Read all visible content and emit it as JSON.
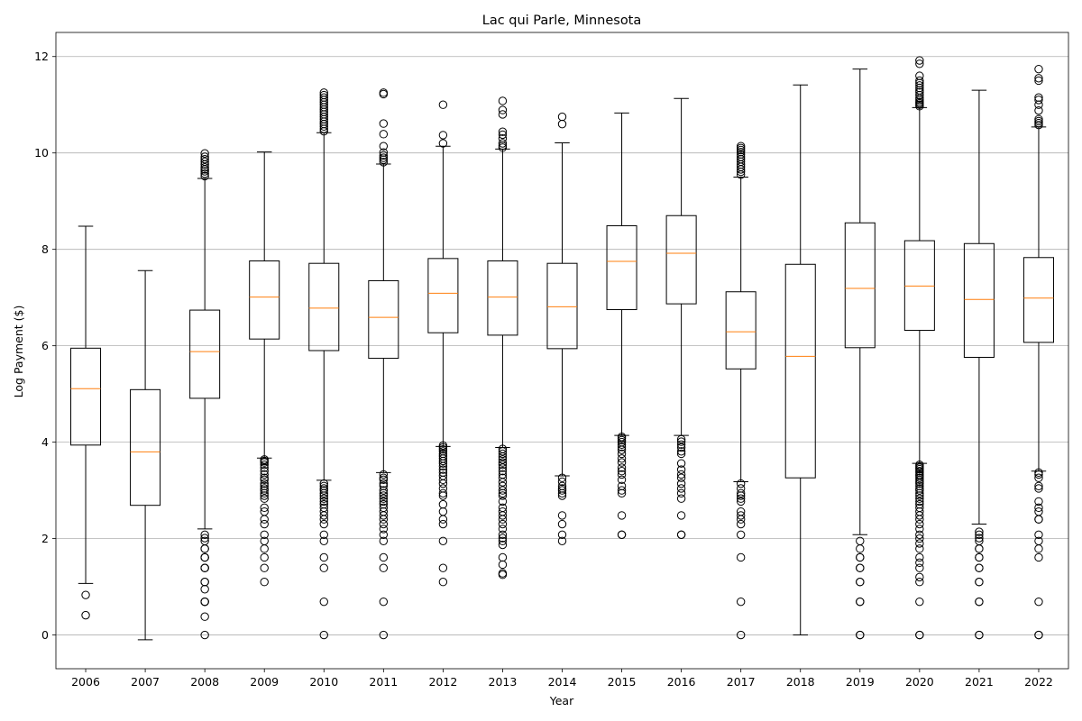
{
  "chart_data": {
    "type": "box",
    "title": "Lac qui Parle, Minnesota",
    "xlabel": "Year",
    "ylabel": "Log Payment ($)",
    "ylim": [
      -0.7,
      12.5
    ],
    "yticks": [
      0,
      2,
      4,
      6,
      8,
      10,
      12
    ],
    "grid": "horizontal",
    "colors": {
      "box": "#000000",
      "median": "#ff7f0e",
      "grid": "#b0b0b0",
      "flier": "#000000"
    },
    "categories": [
      "2006",
      "2007",
      "2008",
      "2009",
      "2010",
      "2011",
      "2012",
      "2013",
      "2014",
      "2015",
      "2016",
      "2017",
      "2018",
      "2019",
      "2020",
      "2021",
      "2022"
    ],
    "boxes": [
      {
        "year": "2006",
        "whislo": 1.07,
        "q1": 3.94,
        "med": 5.11,
        "q3": 5.95,
        "whishi": 8.48,
        "fliers": [
          0.83,
          0.41
        ]
      },
      {
        "year": "2007",
        "whislo": -0.1,
        "q1": 2.69,
        "med": 3.8,
        "q3": 5.09,
        "whishi": 7.56,
        "fliers": []
      },
      {
        "year": "2008",
        "whislo": 2.2,
        "q1": 4.91,
        "med": 5.88,
        "q3": 6.74,
        "whishi": 9.47,
        "fliers": [
          0,
          0.38,
          0.69,
          0.69,
          0.69,
          0.95,
          1.1,
          1.1,
          1.39,
          1.39,
          1.39,
          1.61,
          1.61,
          1.61,
          1.79,
          1.79,
          1.95,
          2.01,
          2.08,
          9.52,
          9.57,
          9.62,
          9.66,
          9.7,
          9.76,
          9.82,
          9.87,
          9.92,
          9.99
        ]
      },
      {
        "year": "2009",
        "whislo": 3.67,
        "q1": 6.14,
        "med": 7.01,
        "q3": 7.76,
        "whishi": 10.02,
        "fliers": [
          1.1,
          1.39,
          1.61,
          1.79,
          1.95,
          2.08,
          2.3,
          2.4,
          2.56,
          2.64,
          2.83,
          2.89,
          2.94,
          3.0,
          3.04,
          3.09,
          3.14,
          3.22,
          3.26,
          3.33,
          3.4,
          3.47,
          3.53,
          3.58,
          3.61,
          3.64
        ]
      },
      {
        "year": "2010",
        "whislo": 3.21,
        "q1": 5.9,
        "med": 6.78,
        "q3": 7.71,
        "whishi": 10.42,
        "fliers": [
          0,
          0.69,
          1.39,
          1.61,
          1.95,
          2.08,
          2.3,
          2.4,
          2.48,
          2.56,
          2.64,
          2.71,
          2.77,
          2.83,
          2.89,
          2.94,
          3.0,
          3.04,
          3.09,
          3.14,
          10.45,
          10.5,
          10.55,
          10.6,
          10.65,
          10.7,
          10.75,
          10.8,
          10.85,
          10.9,
          10.95,
          11.0,
          11.05,
          11.1,
          11.15,
          11.2,
          11.25
        ]
      },
      {
        "year": "2011",
        "whislo": 3.37,
        "q1": 5.74,
        "med": 6.59,
        "q3": 7.35,
        "whishi": 9.77,
        "fliers": [
          0,
          0.69,
          1.39,
          1.61,
          1.95,
          2.08,
          2.2,
          2.3,
          2.4,
          2.48,
          2.56,
          2.64,
          2.71,
          2.77,
          2.83,
          2.89,
          2.94,
          3.0,
          3.09,
          3.14,
          3.22,
          3.26,
          3.33,
          9.81,
          9.86,
          9.9,
          9.95,
          10.01,
          10.14,
          10.39,
          10.61,
          11.22,
          11.25
        ]
      },
      {
        "year": "2012",
        "whislo": 3.91,
        "q1": 6.27,
        "med": 7.09,
        "q3": 7.81,
        "whishi": 10.14,
        "fliers": [
          1.1,
          1.39,
          1.95,
          2.3,
          2.4,
          2.56,
          2.71,
          2.89,
          2.94,
          3.04,
          3.14,
          3.22,
          3.3,
          3.37,
          3.43,
          3.5,
          3.56,
          3.61,
          3.66,
          3.71,
          3.76,
          3.81,
          3.85,
          3.89,
          3.93,
          10.2,
          10.37,
          11.0
        ]
      },
      {
        "year": "2013",
        "whislo": 3.89,
        "q1": 6.22,
        "med": 7.01,
        "q3": 7.76,
        "whishi": 10.08,
        "fliers": [
          1.25,
          1.28,
          1.46,
          1.61,
          1.87,
          1.95,
          2.01,
          2.08,
          2.2,
          2.3,
          2.4,
          2.48,
          2.56,
          2.64,
          2.77,
          2.89,
          2.94,
          3.0,
          3.09,
          3.17,
          3.26,
          3.33,
          3.4,
          3.47,
          3.53,
          3.58,
          3.64,
          3.7,
          3.76,
          3.81,
          3.86,
          10.11,
          10.15,
          10.2,
          10.3,
          10.38,
          10.44,
          10.8,
          10.89,
          11.08
        ]
      },
      {
        "year": "2014",
        "whislo": 3.3,
        "q1": 5.94,
        "med": 6.81,
        "q3": 7.71,
        "whishi": 10.21,
        "fliers": [
          1.95,
          2.08,
          2.3,
          2.48,
          2.89,
          2.94,
          3.0,
          3.04,
          3.09,
          3.18,
          3.26,
          10.6,
          10.75
        ]
      },
      {
        "year": "2015",
        "whislo": 4.14,
        "q1": 6.75,
        "med": 7.75,
        "q3": 8.49,
        "whishi": 10.83,
        "fliers": [
          2.08,
          2.08,
          2.48,
          2.94,
          3.0,
          3.09,
          3.22,
          3.33,
          3.4,
          3.47,
          3.58,
          3.66,
          3.76,
          3.84,
          3.9,
          3.95,
          4.0,
          4.04,
          4.08,
          4.11
        ]
      },
      {
        "year": "2016",
        "whislo": 4.14,
        "q1": 6.87,
        "med": 7.92,
        "q3": 8.7,
        "whishi": 11.13,
        "fliers": [
          2.08,
          2.08,
          2.48,
          2.83,
          2.94,
          3.04,
          3.14,
          3.26,
          3.33,
          3.43,
          3.56,
          3.76,
          3.81,
          3.89,
          3.95,
          4.01,
          4.06
        ]
      },
      {
        "year": "2017",
        "whislo": 3.18,
        "q1": 5.52,
        "med": 6.29,
        "q3": 7.12,
        "whishi": 9.5,
        "fliers": [
          0,
          0.69,
          1.61,
          2.08,
          2.3,
          2.4,
          2.48,
          2.56,
          2.77,
          2.83,
          2.89,
          2.94,
          3.04,
          3.14,
          9.55,
          9.61,
          9.66,
          9.71,
          9.76,
          9.82,
          9.87,
          9.92,
          9.97,
          10.02,
          10.06,
          10.1,
          10.14
        ]
      },
      {
        "year": "2018",
        "whislo": 0,
        "q1": 3.26,
        "med": 5.78,
        "q3": 7.69,
        "whishi": 11.41,
        "fliers": []
      },
      {
        "year": "2019",
        "whislo": 2.08,
        "q1": 5.96,
        "med": 7.19,
        "q3": 8.55,
        "whishi": 11.74,
        "fliers": [
          0,
          0,
          0.69,
          0.69,
          1.1,
          1.1,
          1.39,
          1.39,
          1.61,
          1.61,
          1.79,
          1.95
        ]
      },
      {
        "year": "2020",
        "whislo": 3.56,
        "q1": 6.32,
        "med": 7.24,
        "q3": 8.18,
        "whishi": 10.94,
        "fliers": [
          0,
          0,
          0.69,
          1.1,
          1.2,
          1.39,
          1.5,
          1.61,
          1.79,
          1.9,
          2.0,
          2.08,
          2.2,
          2.3,
          2.4,
          2.48,
          2.56,
          2.64,
          2.71,
          2.77,
          2.83,
          2.89,
          2.94,
          3.0,
          3.04,
          3.09,
          3.14,
          3.18,
          3.22,
          3.26,
          3.3,
          3.33,
          3.37,
          3.4,
          3.44,
          3.47,
          3.5,
          3.53,
          10.97,
          11.0,
          11.03,
          11.06,
          11.1,
          11.14,
          11.2,
          11.26,
          11.3,
          11.35,
          11.4,
          11.45,
          11.5,
          11.6,
          11.85,
          11.92
        ]
      },
      {
        "year": "2021",
        "whislo": 2.3,
        "q1": 5.76,
        "med": 6.96,
        "q3": 8.12,
        "whishi": 11.3,
        "fliers": [
          0,
          0,
          0.69,
          0.69,
          1.1,
          1.1,
          1.39,
          1.39,
          1.61,
          1.61,
          1.79,
          1.79,
          1.95,
          2.01,
          2.08,
          2.14
        ]
      },
      {
        "year": "2022",
        "whislo": 3.4,
        "q1": 6.07,
        "med": 6.99,
        "q3": 7.83,
        "whishi": 10.54,
        "fliers": [
          0,
          0,
          0.69,
          1.61,
          1.79,
          1.95,
          2.08,
          2.4,
          2.4,
          2.56,
          2.64,
          2.77,
          3.04,
          3.09,
          3.26,
          3.33,
          3.37,
          10.58,
          10.62,
          10.66,
          10.7,
          10.88,
          11.0,
          11.1,
          11.15,
          11.5,
          11.55,
          11.74
        ]
      }
    ]
  }
}
